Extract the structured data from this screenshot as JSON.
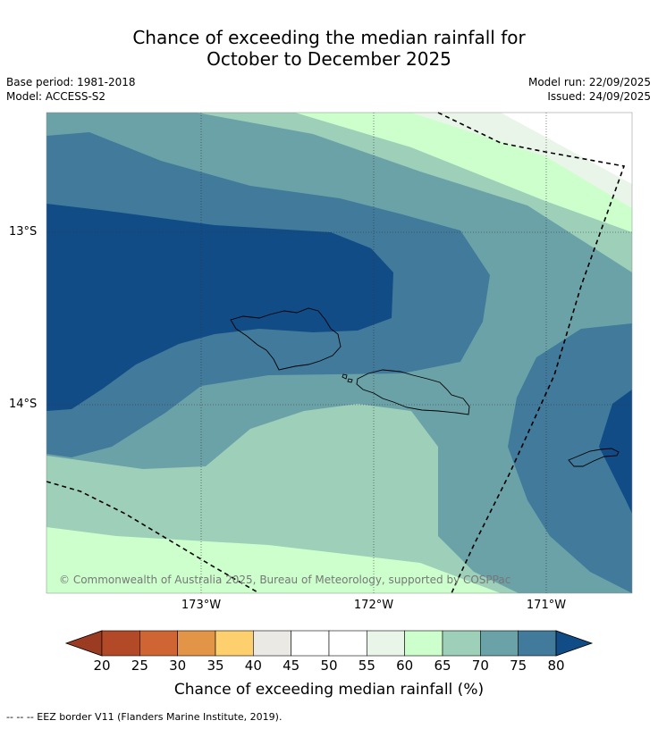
{
  "title_line1": "Chance of exceeding the median rainfall for",
  "title_line2": "October to December 2025",
  "meta": {
    "base_period": "Base period: 1981-2018",
    "model": "Model: ACCESS-S2",
    "model_run": "Model run: 22/09/2025",
    "issued": "Issued: 24/09/2025"
  },
  "map": {
    "lat_labels": [
      "13°S",
      "14°S"
    ],
    "lon_labels": [
      "173°W",
      "172°W",
      "171°W"
    ],
    "copyright": "© Commonwealth of Australia 2025, Bureau of Meteorology, supported by COSPPac"
  },
  "colorbar": {
    "ticks": [
      "20",
      "25",
      "30",
      "35",
      "40",
      "45",
      "50",
      "55",
      "60",
      "65",
      "70",
      "75",
      "80"
    ],
    "colors": [
      "#b24a28",
      "#cf6533",
      "#e29447",
      "#fdd06d",
      "#ebe9e4",
      "#ffffff",
      "#ffffff",
      "#eaf5ea",
      "#ccffcc",
      "#9dcfb9",
      "#6aa2a7",
      "#417a9a"
    ],
    "low_extend_color": "#9a3b22",
    "high_extend_color": "#124c87",
    "label": "Chance of exceeding median rainfall (%)"
  },
  "footer": "--  --  -- EEZ border V11 (Flanders Marine Institute, 2019)."
}
